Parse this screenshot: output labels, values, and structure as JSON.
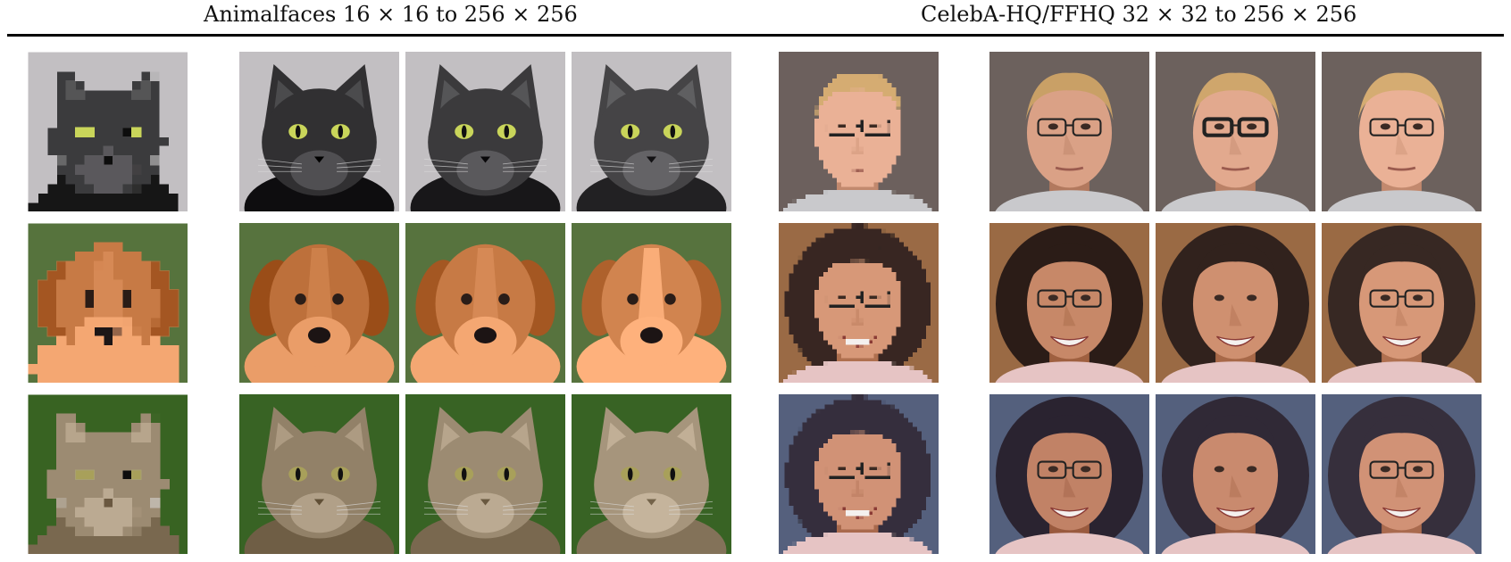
{
  "headings": {
    "animal": "Animalfaces 16 × 16 to 256 × 256",
    "celeba": "CelebA-HQ/FFHQ 32 × 32 to 256 × 256"
  },
  "rows": [
    {
      "animal": {
        "subject": "black cat",
        "fur": "#3b3a3c",
        "background": "#c9c7c9",
        "eye": "#c9d55a"
      },
      "face": {
        "subject": "blond man",
        "skin": "#e2a98e",
        "hair": "#c9a066",
        "background": "#6c615d",
        "glasses": true
      }
    },
    {
      "animal": {
        "subject": "orange dog",
        "fur": "#c77a45",
        "background": "#5f7a45",
        "eye": "#2a1d18"
      },
      "face": {
        "subject": "smiling woman",
        "skin": "#cf9070",
        "hair": "#2b1c17",
        "background": "#9a6a44",
        "glasses": true
      }
    },
    {
      "animal": {
        "subject": "tabby cat",
        "fur": "#9c8b72",
        "background": "#3f6a2c",
        "eye": "#a8a05a"
      },
      "face": {
        "subject": "smiling woman with dark hair",
        "skin": "#c98a6e",
        "hair": "#2a2330",
        "background": "#54607d",
        "glasses": true
      }
    }
  ],
  "colors": {
    "rule": "#000000",
    "text": "#111111"
  }
}
